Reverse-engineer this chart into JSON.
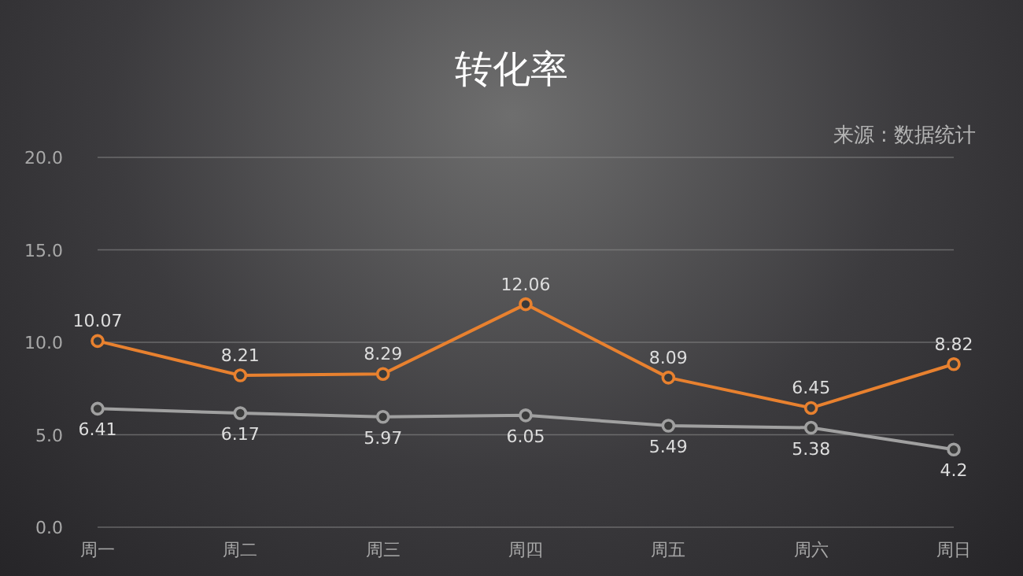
{
  "chart_data": {
    "type": "line",
    "title": "转化率",
    "annotations": [
      "来源 : 数据统计"
    ],
    "categories": [
      "周一",
      "周二",
      "周三",
      "周四",
      "周五",
      "周六",
      "周日"
    ],
    "series": [
      {
        "color": "#e8812f",
        "values": [
          10.07,
          8.21,
          8.29,
          12.06,
          8.09,
          6.45,
          8.82
        ]
      },
      {
        "color": "#a0a0a0",
        "values": [
          6.41,
          6.17,
          5.97,
          6.05,
          5.49,
          5.38,
          4.2
        ]
      }
    ],
    "ylim": [
      0,
      20
    ],
    "yticks": [
      {
        "value": 0,
        "label": "0.0"
      },
      {
        "value": 5,
        "label": "5.0"
      },
      {
        "value": 10,
        "label": "10.0"
      },
      {
        "value": 15,
        "label": "15.0"
      },
      {
        "value": 20,
        "label": "20.0"
      }
    ],
    "grid": "y",
    "marker": "circle",
    "line_style": "solid",
    "data_labels": true
  }
}
